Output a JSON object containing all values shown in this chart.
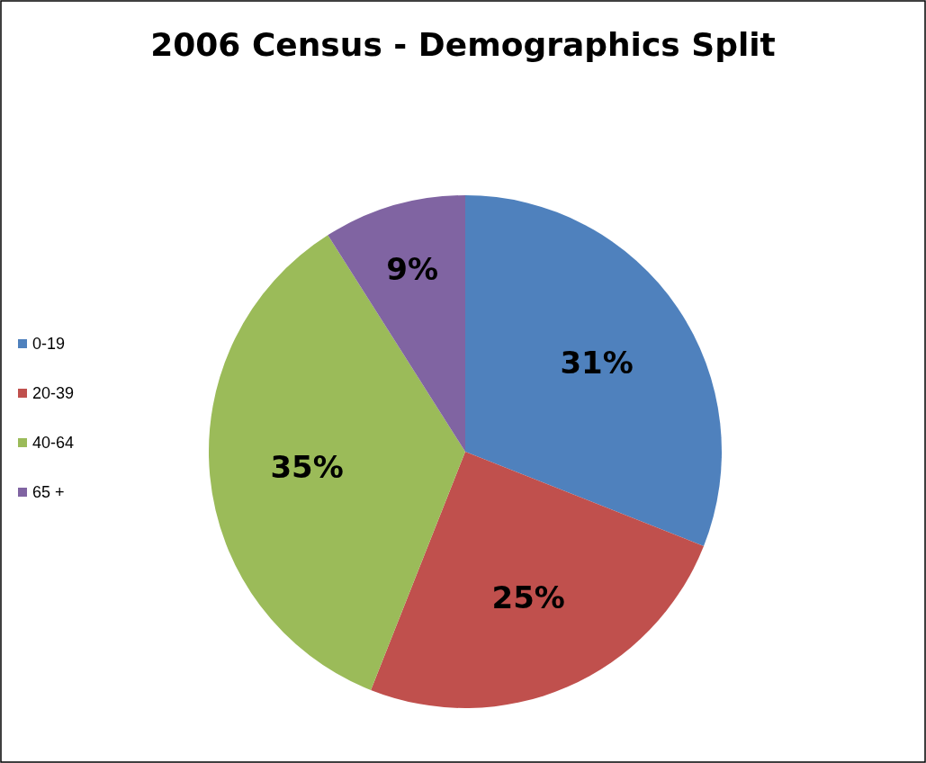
{
  "chart_data": {
    "type": "pie",
    "title": "2006 Census - Demographics Split",
    "categories": [
      "0-19",
      "20-39",
      "40-64",
      "65 +"
    ],
    "values": [
      31,
      25,
      35,
      9
    ],
    "colors": [
      "#4f81bd",
      "#c0504d",
      "#9bbb59",
      "#8064a2"
    ],
    "value_labels": [
      "31%",
      "25%",
      "35%",
      "9%"
    ],
    "legend": "left"
  }
}
